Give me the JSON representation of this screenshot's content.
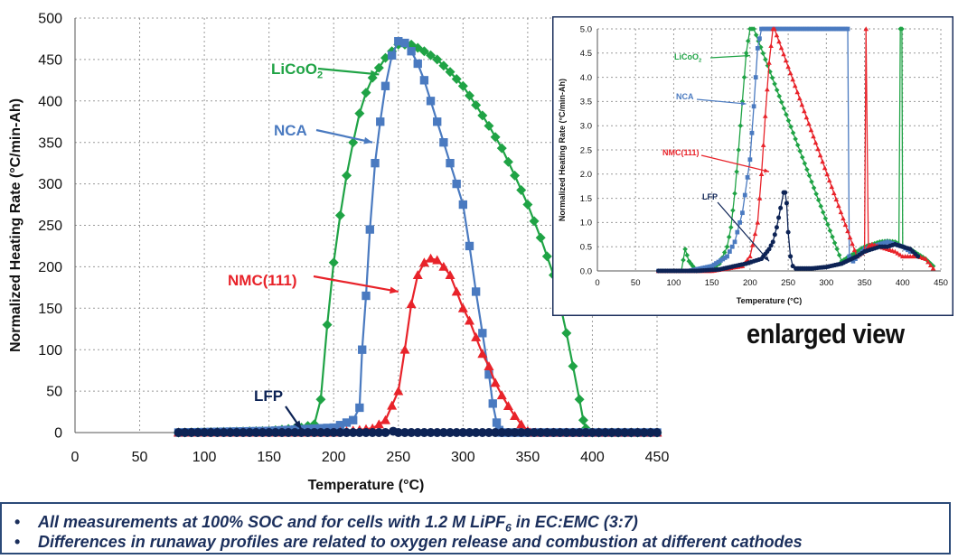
{
  "chart_data": [
    {
      "type": "line",
      "title": "",
      "xlabel": "Temperature (°C)",
      "ylabel": "Normalized Heating Rate (°C/min-Ah)",
      "xlim": [
        0,
        450
      ],
      "ylim": [
        0,
        500
      ],
      "xticks": [
        "0",
        "50",
        "100",
        "150",
        "200",
        "250",
        "300",
        "350",
        "400",
        "450"
      ],
      "yticks": [
        "0",
        "50",
        "100",
        "150",
        "200",
        "250",
        "300",
        "350",
        "400",
        "450",
        "500"
      ],
      "grid": true,
      "series": [
        {
          "name": "LiCoO2",
          "color": "#1fa345",
          "marker": "diamond",
          "x": [
            80,
            150,
            175,
            185,
            190,
            195,
            200,
            205,
            210,
            215,
            220,
            225,
            230,
            240,
            250,
            260,
            270,
            280,
            290,
            300,
            310,
            320,
            330,
            340,
            350,
            360,
            370,
            380,
            385,
            390,
            393,
            395,
            397,
            400,
            450
          ],
          "y": [
            0,
            2,
            6,
            10,
            40,
            130,
            205,
            262,
            310,
            350,
            385,
            410,
            428,
            452,
            468,
            468,
            460,
            450,
            435,
            418,
            395,
            370,
            343,
            310,
            275,
            235,
            190,
            120,
            80,
            40,
            15,
            5,
            1,
            0,
            0
          ]
        },
        {
          "name": "NCA",
          "color": "#4a7ac0",
          "marker": "square",
          "x": [
            80,
            150,
            200,
            215,
            220,
            222,
            225,
            228,
            232,
            236,
            240,
            245,
            250,
            255,
            260,
            265,
            270,
            275,
            280,
            285,
            290,
            295,
            300,
            305,
            310,
            315,
            320,
            323,
            326,
            328,
            330,
            450
          ],
          "y": [
            0,
            2,
            6,
            15,
            30,
            100,
            165,
            245,
            325,
            375,
            418,
            455,
            472,
            470,
            460,
            445,
            425,
            400,
            375,
            350,
            325,
            300,
            275,
            225,
            170,
            120,
            70,
            35,
            12,
            3,
            0,
            0
          ]
        },
        {
          "name": "NMC(111)",
          "color": "#e8232a",
          "marker": "triangle",
          "x": [
            80,
            200,
            230,
            240,
            250,
            255,
            260,
            265,
            270,
            275,
            280,
            285,
            290,
            295,
            300,
            305,
            310,
            315,
            320,
            325,
            330,
            335,
            340,
            345,
            350,
            352,
            360,
            450
          ],
          "y": [
            0,
            0,
            5,
            15,
            50,
            100,
            155,
            190,
            205,
            210,
            208,
            200,
            190,
            170,
            150,
            135,
            115,
            95,
            80,
            60,
            45,
            32,
            20,
            10,
            2,
            0,
            0,
            0
          ]
        },
        {
          "name": "LFP",
          "color": "#0d2355",
          "marker": "circle",
          "x": [
            80,
            200,
            240,
            246,
            250,
            260,
            300,
            330,
            450
          ],
          "y": [
            0,
            0,
            0,
            1.6,
            0,
            0,
            0,
            0,
            0
          ]
        }
      ],
      "annotations": [
        {
          "text": "LiCoO",
          "sub": "2",
          "color": "#1fa345",
          "arrow_to": [
            235,
            432
          ]
        },
        {
          "text": "NCA",
          "sub": "",
          "color": "#4a7ac0",
          "arrow_to": [
            230,
            350
          ]
        },
        {
          "text": "NMC(111)",
          "sub": "",
          "color": "#e8232a",
          "arrow_to": [
            250,
            170
          ]
        },
        {
          "text": "LFP",
          "sub": "",
          "color": "#0d2355",
          "arrow_to": [
            175,
            4
          ]
        }
      ]
    },
    {
      "type": "line",
      "title": "",
      "xlabel": "Temperature (°C)",
      "ylabel": "Normalized Heating Rate (°C/min-Ah)",
      "xlim": [
        0,
        450
      ],
      "ylim": [
        0,
        5.0
      ],
      "xticks": [
        "0",
        "50",
        "100",
        "150",
        "200",
        "250",
        "300",
        "350",
        "400",
        "450"
      ],
      "yticks": [
        "0.0",
        "0.5",
        "1.0",
        "1.5",
        "2.0",
        "2.5",
        "3.0",
        "3.5",
        "4.0",
        "4.5",
        "5.0"
      ],
      "grid": true,
      "series": [
        {
          "name": "LiCoO2",
          "color": "#1fa345",
          "marker": "diamond",
          "x": [
            80,
            110,
            115,
            120,
            125,
            130,
            150,
            160,
            170,
            175,
            180,
            185,
            190,
            195,
            200,
            205,
            320,
            330,
            340,
            350,
            360,
            370,
            380,
            390,
            395,
            397,
            399,
            400,
            410,
            420,
            430,
            440
          ],
          "y": [
            0,
            0,
            0.45,
            0.2,
            0.1,
            0,
            0.05,
            0.15,
            0.5,
            0.9,
            1.6,
            2.5,
            3.5,
            4.5,
            5.0,
            5.0,
            0.2,
            0.3,
            0.4,
            0.5,
            0.55,
            0.6,
            0.62,
            0.6,
            0.55,
            5.0,
            5.0,
            0.5,
            0.45,
            0.35,
            0.25,
            0.1
          ]
        },
        {
          "name": "NCA",
          "color": "#4a7ac0",
          "marker": "square",
          "x": [
            80,
            120,
            150,
            170,
            180,
            190,
            200,
            205,
            210,
            215,
            325,
            328,
            330,
            335,
            350,
            370,
            380,
            390,
            400,
            410
          ],
          "y": [
            0,
            0,
            0.1,
            0.3,
            0.6,
            1.2,
            2.3,
            3.4,
            4.6,
            5.0,
            5.0,
            5.0,
            0.3,
            0.2,
            0.45,
            0.55,
            0.6,
            0.55,
            0.5,
            0.4
          ]
        },
        {
          "name": "NMC(111)",
          "color": "#e8232a",
          "marker": "triangle",
          "x": [
            80,
            150,
            190,
            200,
            210,
            215,
            220,
            225,
            230,
            232,
            340,
            350,
            352,
            355,
            360,
            370,
            380,
            390,
            400,
            410,
            420,
            430,
            440
          ],
          "y": [
            0,
            0,
            0.1,
            0.3,
            1.0,
            2.0,
            3.2,
            4.3,
            5.0,
            5.0,
            0.3,
            0.4,
            5.0,
            0.5,
            0.55,
            0.5,
            0.45,
            0.4,
            0.3,
            0.3,
            0.3,
            0.25,
            0.05
          ]
        },
        {
          "name": "LFP",
          "color": "#0d2355",
          "marker": "circle",
          "x": [
            80,
            130,
            160,
            180,
            195,
            205,
            215,
            220,
            225,
            230,
            235,
            240,
            244,
            246,
            248,
            250,
            253,
            256,
            260,
            280,
            300,
            320,
            340,
            350,
            360,
            370,
            380,
            390,
            400,
            410,
            420
          ],
          "y": [
            0,
            0,
            0.03,
            0.1,
            0.15,
            0.2,
            0.25,
            0.35,
            0.45,
            0.6,
            0.9,
            1.3,
            1.62,
            1.62,
            1.4,
            0.8,
            0.3,
            0.1,
            0.05,
            0.05,
            0.08,
            0.15,
            0.3,
            0.4,
            0.45,
            0.5,
            0.5,
            0.55,
            0.5,
            0.45,
            0.3
          ]
        }
      ],
      "annotations": [
        {
          "text": "LiCoO",
          "sub": "2",
          "color": "#1fa345",
          "arrow_to": [
            200,
            4.45
          ]
        },
        {
          "text": "NCA",
          "sub": "",
          "color": "#4a7ac0",
          "arrow_to": [
            195,
            3.45
          ]
        },
        {
          "text": "NMC(111)",
          "sub": "",
          "color": "#e8232a",
          "arrow_to": [
            225,
            2.05
          ]
        },
        {
          "text": "LFP",
          "sub": "",
          "color": "#0d2355",
          "arrow_to": [
            225,
            0.2
          ]
        }
      ]
    }
  ],
  "enlarged_label": "enlarged view",
  "notes": [
    {
      "bullet": "•",
      "pre": "All measurements at 100% SOC and for cells with 1.2 M LiPF",
      "sub": "6",
      "post": " in EC:EMC (3:7)"
    },
    {
      "bullet": "•",
      "pre": "Differences in runaway profiles are related to oxygen release and combustion at different cathodes",
      "sub": "",
      "post": ""
    }
  ]
}
